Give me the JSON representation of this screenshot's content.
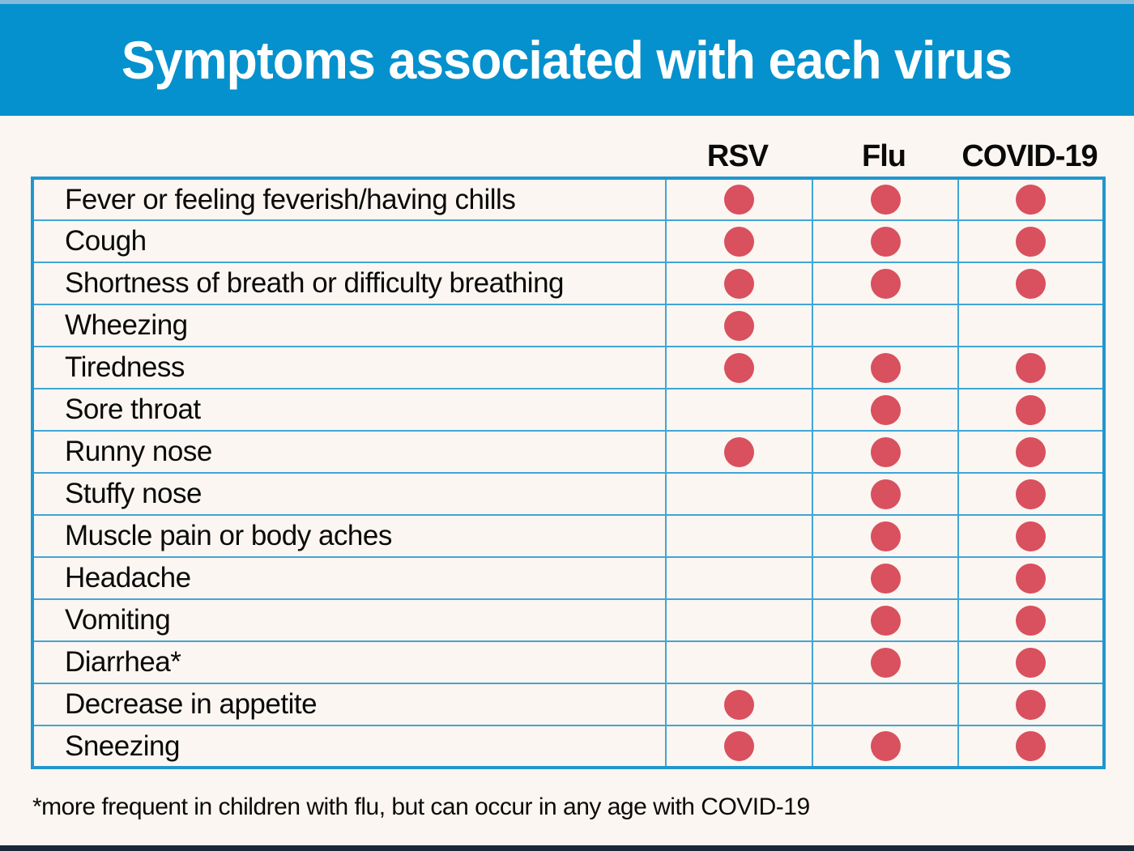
{
  "chart_data": {
    "type": "table",
    "title": "Symptoms associated with each virus",
    "columns": [
      "RSV",
      "Flu",
      "COVID-19"
    ],
    "rows": [
      {
        "label": "Fever or feeling feverish/having chills",
        "dots": [
          1,
          1,
          1
        ]
      },
      {
        "label": "Cough",
        "dots": [
          1,
          1,
          1
        ]
      },
      {
        "label": "Shortness of breath or difficulty breathing",
        "dots": [
          1,
          1,
          1
        ]
      },
      {
        "label": "Wheezing",
        "dots": [
          1,
          0,
          0
        ]
      },
      {
        "label": "Tiredness",
        "dots": [
          1,
          1,
          1
        ]
      },
      {
        "label": "Sore throat",
        "dots": [
          0,
          1,
          1
        ]
      },
      {
        "label": "Runny nose",
        "dots": [
          1,
          1,
          1
        ]
      },
      {
        "label": "Stuffy nose",
        "dots": [
          0,
          1,
          1
        ]
      },
      {
        "label": "Muscle pain or body aches",
        "dots": [
          0,
          1,
          1
        ]
      },
      {
        "label": "Headache",
        "dots": [
          0,
          1,
          1
        ]
      },
      {
        "label": "Vomiting",
        "dots": [
          0,
          1,
          1
        ]
      },
      {
        "label": "Diarrhea*",
        "dots": [
          0,
          1,
          1
        ]
      },
      {
        "label": "Decrease in appetite",
        "dots": [
          1,
          0,
          1
        ]
      },
      {
        "label": "Sneezing",
        "dots": [
          1,
          1,
          1
        ]
      }
    ],
    "footnote": "*more frequent in children with flu, but can occur in any age with COVID-19"
  },
  "colors": {
    "header_bg": "#0591CD",
    "top_strip": "#85B9D8",
    "background": "#FBF6F1",
    "dot": "#D9505F",
    "table_border": "#2296CF",
    "grid_line": "#41A5D6",
    "bottom_bar": "#1B2837"
  }
}
